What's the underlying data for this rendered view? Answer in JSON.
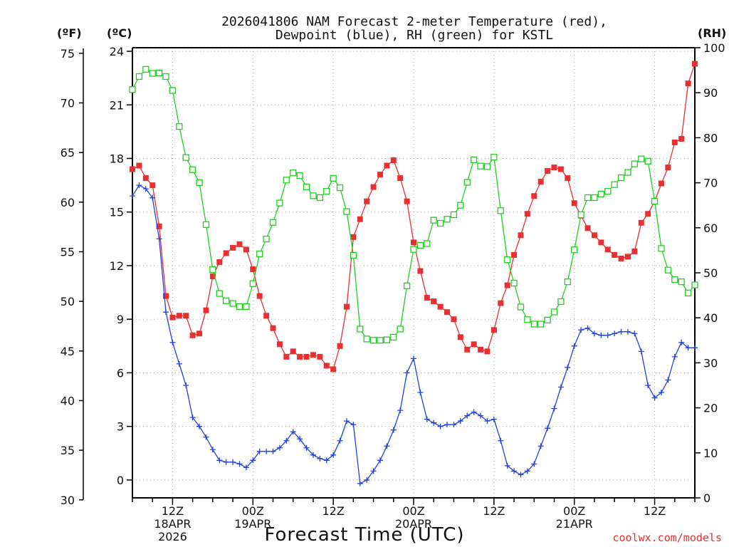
{
  "chart_data": {
    "type": "line",
    "title_line1": "2026041806 NAM Forecast 2-meter Temperature (red),",
    "title_line2": "Dewpoint (blue), RH (green) for KSTL",
    "unit_f": "(ºF)",
    "unit_c": "(ºC)",
    "unit_rh": "(RH)",
    "xlabel": "Forecast Time (UTC)",
    "credit": "coolwx.com/models",
    "ylim_c": [
      -1.0,
      24.2
    ],
    "ylim_rh": [
      0,
      100
    ],
    "x_range_hours": [
      6,
      90
    ],
    "f_ticks": [
      "75",
      "70",
      "65",
      "60",
      "55",
      "50",
      "45",
      "40",
      "35",
      "30"
    ],
    "f_values": [
      75,
      70,
      65,
      60,
      55,
      50,
      45,
      40,
      35,
      30
    ],
    "c_ticks": [
      "24",
      "21",
      "18",
      "15",
      "12",
      "9",
      "6",
      "3",
      "0"
    ],
    "c_values": [
      24,
      21,
      18,
      15,
      12,
      9,
      6,
      3,
      0
    ],
    "rh_ticks": [
      "100",
      "90",
      "80",
      "70",
      "60",
      "50",
      "40",
      "30",
      "20",
      "10",
      "0"
    ],
    "rh_values": [
      100,
      90,
      80,
      70,
      60,
      50,
      40,
      30,
      20,
      10,
      0
    ],
    "x_ticks": [
      {
        "hour": 12,
        "line1": "12Z",
        "line2": "18APR",
        "line3": "2026"
      },
      {
        "hour": 24,
        "line1": "00Z",
        "line2": "19APR",
        "line3": ""
      },
      {
        "hour": 36,
        "line1": "12Z",
        "line2": "",
        "line3": ""
      },
      {
        "hour": 48,
        "line1": "00Z",
        "line2": "20APR",
        "line3": ""
      },
      {
        "hour": 60,
        "line1": "12Z",
        "line2": "",
        "line3": ""
      },
      {
        "hour": 72,
        "line1": "00Z",
        "line2": "21APR",
        "line3": ""
      },
      {
        "hour": 84,
        "line1": "12Z",
        "line2": "",
        "line3": ""
      }
    ],
    "series": [
      {
        "name": "Temperature",
        "units": "C",
        "color": "#e83030",
        "marker": "filled-square",
        "x": [
          6,
          7,
          8,
          9,
          10,
          11,
          12,
          13,
          14,
          15,
          16,
          17,
          18,
          19,
          20,
          21,
          22,
          23,
          24,
          25,
          26,
          27,
          28,
          29,
          30,
          31,
          32,
          33,
          34,
          35,
          36,
          37,
          38,
          39,
          40,
          41,
          42,
          43,
          44,
          45,
          46,
          47,
          48,
          49,
          50,
          51,
          52,
          53,
          54,
          55,
          56,
          57,
          58,
          59,
          60,
          61,
          62,
          63,
          64,
          65,
          66,
          67,
          68,
          69,
          70,
          71,
          72,
          73,
          74,
          75,
          76,
          77,
          78,
          79,
          80,
          81,
          82,
          83,
          84,
          85,
          86,
          87,
          88,
          89,
          90
        ],
        "values": [
          17.4,
          17.6,
          16.9,
          16.5,
          14.2,
          10.3,
          9.1,
          9.2,
          9.2,
          8.1,
          8.2,
          9.5,
          11.4,
          12.2,
          12.7,
          13.0,
          13.2,
          12.9,
          11.8,
          10.3,
          9.2,
          8.5,
          7.6,
          6.9,
          7.2,
          6.9,
          6.9,
          7.0,
          6.9,
          6.4,
          6.2,
          7.5,
          9.7,
          13.6,
          14.6,
          15.6,
          16.4,
          17.1,
          17.6,
          17.9,
          16.9,
          15.6,
          13.3,
          11.7,
          10.2,
          10.0,
          9.7,
          9.4,
          9.0,
          8.0,
          7.3,
          7.6,
          7.3,
          7.2,
          8.4,
          9.9,
          10.9,
          12.6,
          13.7,
          14.9,
          15.9,
          16.7,
          17.3,
          17.5,
          17.4,
          16.9,
          15.5,
          14.8,
          14.1,
          13.7,
          13.3,
          12.9,
          12.6,
          12.4,
          12.5,
          12.8,
          14.4,
          14.9,
          15.6,
          16.6,
          17.5,
          18.9,
          19.1,
          22.2,
          23.3
        ]
      },
      {
        "name": "Dewpoint",
        "units": "C",
        "color": "#2040e0",
        "marker": "plus",
        "x": [
          6,
          7,
          8,
          9,
          10,
          11,
          12,
          13,
          14,
          15,
          16,
          17,
          18,
          19,
          20,
          21,
          22,
          23,
          24,
          25,
          26,
          27,
          28,
          29,
          30,
          31,
          32,
          33,
          34,
          35,
          36,
          37,
          38,
          39,
          40,
          41,
          42,
          43,
          44,
          45,
          46,
          47,
          48,
          49,
          50,
          51,
          52,
          53,
          54,
          55,
          56,
          57,
          58,
          59,
          60,
          61,
          62,
          63,
          64,
          65,
          66,
          67,
          68,
          69,
          70,
          71,
          72,
          73,
          74,
          75,
          76,
          77,
          78,
          79,
          80,
          81,
          82,
          83,
          84,
          85,
          86,
          87,
          88,
          89,
          90
        ],
        "values": [
          15.9,
          16.5,
          16.3,
          15.8,
          13.5,
          9.4,
          7.7,
          6.5,
          5.3,
          3.5,
          3.0,
          2.4,
          1.7,
          1.1,
          1.0,
          1.0,
          0.9,
          0.7,
          1.1,
          1.6,
          1.6,
          1.6,
          1.8,
          2.2,
          2.7,
          2.3,
          1.8,
          1.4,
          1.2,
          1.1,
          1.4,
          2.2,
          3.3,
          3.1,
          -0.2,
          0.0,
          0.5,
          1.1,
          1.9,
          2.8,
          3.9,
          6.0,
          6.8,
          4.9,
          3.4,
          3.2,
          3.0,
          3.1,
          3.1,
          3.3,
          3.6,
          3.8,
          3.6,
          3.3,
          3.4,
          2.2,
          0.8,
          0.5,
          0.3,
          0.5,
          0.9,
          1.9,
          2.9,
          4.0,
          5.2,
          6.3,
          7.5,
          8.4,
          8.5,
          8.2,
          8.1,
          8.1,
          8.2,
          8.3,
          8.3,
          8.2,
          7.2,
          5.3,
          4.6,
          4.9,
          5.6,
          6.9,
          7.7,
          7.4,
          7.4
        ]
      },
      {
        "name": "RH",
        "units": "%",
        "color": "#20d020",
        "marker": "open-square",
        "x": [
          6,
          7,
          8,
          9,
          10,
          11,
          12,
          13,
          14,
          15,
          16,
          17,
          18,
          19,
          20,
          21,
          22,
          23,
          24,
          25,
          26,
          27,
          28,
          29,
          30,
          31,
          32,
          33,
          34,
          35,
          36,
          37,
          38,
          39,
          40,
          41,
          42,
          43,
          44,
          45,
          46,
          47,
          48,
          49,
          50,
          51,
          52,
          53,
          54,
          55,
          56,
          57,
          58,
          59,
          60,
          61,
          62,
          63,
          64,
          65,
          66,
          67,
          68,
          69,
          70,
          71,
          72,
          73,
          74,
          75,
          76,
          77,
          78,
          79,
          80,
          81,
          82,
          83,
          84,
          85,
          86,
          87,
          88,
          89,
          90
        ],
        "values": [
          90.7,
          93.6,
          95.2,
          94.3,
          94.4,
          93.6,
          90.5,
          82.5,
          75.6,
          72.9,
          70.0,
          60.7,
          50.7,
          45.4,
          43.8,
          43.2,
          42.5,
          42.5,
          47.6,
          54.2,
          57.5,
          61.2,
          65.5,
          70.6,
          72.2,
          71.6,
          69.1,
          67.1,
          66.7,
          68.1,
          71.0,
          68.9,
          63.6,
          53.9,
          37.5,
          35.3,
          35.0,
          35.0,
          35.1,
          35.7,
          37.5,
          47.1,
          55.2,
          56.1,
          56.5,
          61.7,
          61.0,
          61.9,
          62.9,
          65.0,
          70.1,
          75.1,
          73.7,
          73.6,
          75.7,
          63.8,
          52.9,
          47.7,
          42.4,
          39.6,
          38.6,
          38.6,
          39.5,
          41.3,
          43.6,
          48.0,
          55.1,
          62.9,
          66.7,
          66.7,
          67.5,
          68.1,
          69.6,
          71.1,
          72.3,
          74.2,
          75.3,
          74.8,
          65.9,
          55.4,
          50.6,
          48.5,
          48.0,
          45.5,
          47.3
        ]
      }
    ]
  }
}
